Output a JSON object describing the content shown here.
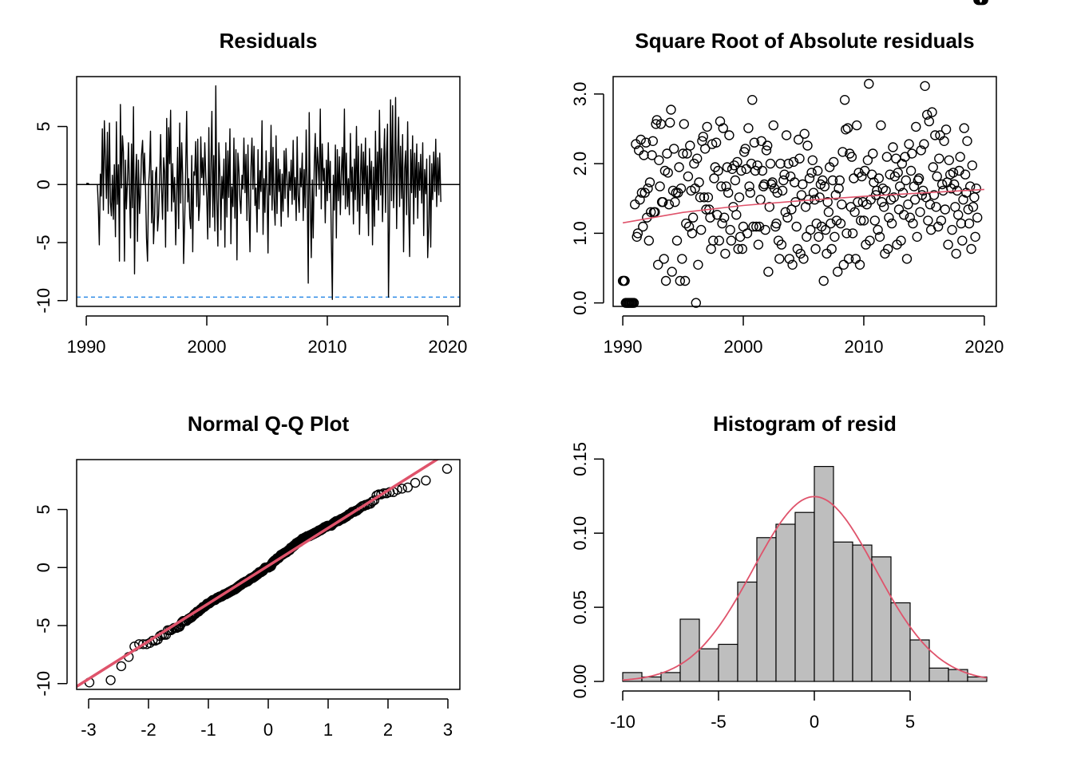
{
  "chart_data": [
    {
      "panel": "residuals-ts",
      "type": "line",
      "title": "Residuals",
      "xlabel": "",
      "ylabel": "",
      "xlim": [
        1989.2,
        2021.0
      ],
      "ylim": [
        -10.5,
        9.3
      ],
      "xticks": [
        1990,
        2000,
        2010,
        2020
      ],
      "xtick_labels": [
        "1990",
        "2000",
        "2010",
        "2020"
      ],
      "yticks": [
        -10,
        -5,
        0,
        5
      ],
      "ytick_labels": [
        "-10",
        "-5",
        "0",
        "5"
      ],
      "hline_zero": 0,
      "hline_dashed": -9.7,
      "colors": {
        "line": "#000000",
        "dashed": "#2E8BE6"
      },
      "series_x": [
        1990.0,
        1990.08,
        1990.17,
        1990.25,
        1990.33,
        1990.42,
        1990.5,
        1990.58,
        1990.67,
        1990.75,
        1990.83,
        1990.92,
        1991.0,
        1991.08,
        1991.17,
        1991.25,
        1991.33,
        1991.42,
        1991.5,
        1991.58,
        1991.67,
        1991.75,
        1991.83,
        1991.92,
        1992.0,
        1992.08,
        1992.17,
        1992.25,
        1992.33,
        1992.42,
        1992.5,
        1992.58,
        1992.67,
        1992.75,
        1992.83,
        1992.92,
        1993.0,
        1993.08,
        1993.17,
        1993.25,
        1993.33,
        1993.42,
        1993.5,
        1993.58,
        1993.67,
        1993.75,
        1993.83,
        1993.92,
        1994.0,
        1994.08,
        1994.17,
        1994.25,
        1994.33,
        1994.42,
        1994.5,
        1994.58,
        1994.67,
        1994.75,
        1994.83,
        1994.92,
        1995.0,
        1995.08,
        1995.17,
        1995.25,
        1995.33,
        1995.42,
        1995.5,
        1995.58,
        1995.67,
        1995.75,
        1995.83,
        1995.92,
        1996.0,
        1996.08,
        1996.17,
        1996.25,
        1996.33,
        1996.42,
        1996.5,
        1996.58,
        1996.67,
        1996.75,
        1996.83,
        1996.92,
        1997.0,
        1997.08,
        1997.17,
        1997.25,
        1997.33,
        1997.42,
        1997.5,
        1997.58,
        1997.67,
        1997.75,
        1997.83,
        1997.92,
        1998.0,
        1998.08,
        1998.17,
        1998.25,
        1998.33,
        1998.42,
        1998.5,
        1998.58,
        1998.67,
        1998.75,
        1998.83,
        1998.92,
        1999.0,
        1999.08,
        1999.17,
        1999.25,
        1999.33,
        1999.42,
        1999.5,
        1999.58,
        1999.67,
        1999.75,
        1999.83,
        1999.92,
        2000.0,
        2000.08,
        2000.17,
        2000.25,
        2000.33,
        2000.42,
        2000.5,
        2000.58,
        2000.67,
        2000.75,
        2000.83,
        2000.92,
        2001.0,
        2001.08,
        2001.17,
        2001.25,
        2001.33,
        2001.42,
        2001.5,
        2001.58,
        2001.67,
        2001.75,
        2001.83,
        2001.92,
        2002.0,
        2002.08,
        2002.17,
        2002.25,
        2002.33,
        2002.42,
        2002.5,
        2002.58,
        2002.67,
        2002.75,
        2002.83,
        2002.92,
        2003.0,
        2003.08,
        2003.17,
        2003.25,
        2003.33,
        2003.42,
        2003.5,
        2003.58,
        2003.67,
        2003.75,
        2003.83,
        2003.92,
        2004.0,
        2004.08,
        2004.17,
        2004.25,
        2004.33,
        2004.42,
        2004.5,
        2004.58,
        2004.67,
        2004.75,
        2004.83,
        2004.92,
        2005.0,
        2005.08,
        2005.17,
        2005.25,
        2005.33,
        2005.42,
        2005.5,
        2005.58,
        2005.67,
        2005.75,
        2005.83,
        2005.92,
        2006.0,
        2006.08,
        2006.17,
        2006.25,
        2006.33,
        2006.42,
        2006.5,
        2006.58,
        2006.67,
        2006.75,
        2006.83,
        2006.92,
        2007.0,
        2007.08,
        2007.17,
        2007.25,
        2007.33,
        2007.42,
        2007.5,
        2007.58,
        2007.67,
        2007.75,
        2007.83,
        2007.92,
        2008.0,
        2008.08,
        2008.17,
        2008.25,
        2008.33,
        2008.42,
        2008.5,
        2008.58,
        2008.67,
        2008.75,
        2008.83,
        2008.92,
        2009.0,
        2009.08,
        2009.17,
        2009.25,
        2009.33,
        2009.42,
        2009.5,
        2009.58,
        2009.67,
        2009.75,
        2009.83,
        2009.92,
        2010.0,
        2010.08,
        2010.17,
        2010.25,
        2010.33,
        2010.42,
        2010.5,
        2010.58,
        2010.67,
        2010.75,
        2010.83,
        2010.92,
        2011.0,
        2011.08,
        2011.17,
        2011.25,
        2011.33,
        2011.42,
        2011.5,
        2011.58,
        2011.67,
        2011.75,
        2011.83,
        2011.92,
        2012.0,
        2012.08,
        2012.17,
        2012.25,
        2012.33,
        2012.42,
        2012.5,
        2012.58,
        2012.67,
        2012.75,
        2012.83,
        2012.92,
        2013.0,
        2013.08,
        2013.17,
        2013.25,
        2013.33,
        2013.42,
        2013.5,
        2013.58,
        2013.67,
        2013.75,
        2013.83,
        2013.92,
        2014.0,
        2014.08,
        2014.17,
        2014.25,
        2014.33,
        2014.42,
        2014.5,
        2014.58,
        2014.67,
        2014.75,
        2014.83,
        2014.92,
        2015.0,
        2015.08,
        2015.17,
        2015.25,
        2015.33,
        2015.42,
        2015.5,
        2015.58,
        2015.67,
        2015.75,
        2015.83,
        2015.92,
        2016.0,
        2016.08,
        2016.17,
        2016.25,
        2016.33,
        2016.42,
        2016.5,
        2016.58,
        2016.67,
        2016.75,
        2016.83,
        2016.92,
        2017.0,
        2017.08,
        2017.17,
        2017.25,
        2017.33,
        2017.42,
        2017.5,
        2017.58,
        2017.67,
        2017.75,
        2017.83,
        2017.92,
        2018.0,
        2018.08,
        2018.17,
        2018.25,
        2018.33,
        2018.42,
        2018.5,
        2018.58,
        2018.67,
        2018.75,
        2018.83,
        2018.92,
        2019.0,
        2019.08,
        2019.17,
        2019.25,
        2019.33,
        2019.42,
        2019.5,
        2019.58,
        2019.67,
        2019.75,
        2019.83,
        2019.92
      ],
      "series_y": [
        0.1,
        0.1,
        0.1,
        0.0,
        0.0,
        0.0,
        0.0,
        0.0,
        0.0,
        0.0,
        0.0,
        0.0,
        -2.0,
        -5.2,
        0.9,
        -1.0,
        4.8,
        -2.2,
        5.5,
        2.5,
        -1.2,
        4.5,
        -2.5,
        5.3,
        -1.5,
        -2.7,
        0.8,
        -3.0,
        1.7,
        -4.5,
        5.4,
        -1.7,
        1.7,
        -6.6,
        6.9,
        -0.3,
        4.2,
        2.8,
        -6.6,
        2.1,
        -2.1,
        0.4,
        3.6,
        -0.1,
        -4.6,
        3.5,
        -2.0,
        6.7,
        -7.7,
        0.2,
        2.6,
        -4.9,
        2.1,
        -2.5,
        -0.8,
        2.5,
        3.8,
        0.1,
        2.7,
        -0.4,
        -4.6,
        -6.6,
        -0.1,
        1.3,
        4.6,
        -3.3,
        1.2,
        -5.1,
        -2.6,
        1.0,
        1.5,
        -4.0,
        -2.7,
        0.0,
        4.3,
        -0.3,
        -3.0,
        2.3,
        1.1,
        -5.4,
        5.7,
        -2.3,
        4.9,
        1.8,
        6.4,
        -2.3,
        1.8,
        -1.5,
        0.6,
        -5.2,
        -0.8,
        3.2,
        -3.8,
        5.3,
        -1.6,
        3.6,
        0.8,
        -6.8,
        -2.8,
        1.3,
        6.3,
        -1.5,
        0.5,
        -2.8,
        -3.8,
        2.5,
        -5.8,
        1.1,
        0.8,
        3.7,
        -1.9,
        3.9,
        -3.1,
        -1.6,
        4.1,
        0.6,
        2.3,
        -0.9,
        3.6,
        0.6,
        -1.2,
        -4.7,
        4.9,
        -3.7,
        1.0,
        6.3,
        -2.8,
        2.5,
        -4.0,
        8.5,
        -1.2,
        -5.3,
        3.6,
        1.2,
        -3.9,
        0.7,
        -1.2,
        2.2,
        -5.4,
        3.6,
        -2.8,
        2.9,
        -1.1,
        4.8,
        -5.1,
        -0.2,
        -1.9,
        4.0,
        -2.9,
        3.0,
        -6.5,
        2.7,
        1.2,
        -1.3,
        -2.5,
        0.8,
        -0.4,
        4.0,
        -0.7,
        2.6,
        -3.1,
        3.4,
        -1.7,
        -5.8,
        1.5,
        4.0,
        -0.4,
        3.3,
        -1.8,
        -0.3,
        -4.1,
        3.0,
        -2.1,
        1.2,
        -0.6,
        5.5,
        -4.3,
        0.5,
        -2.4,
        2.9,
        -0.4,
        -5.9,
        1.9,
        -0.9,
        5.1,
        -2.2,
        3.2,
        -1.1,
        -3.5,
        4.2,
        -2.5,
        2.2,
        -0.6,
        1.3,
        -3.6,
        0.9,
        -2.3,
        2.9,
        -1.2,
        3.1,
        0.1,
        -2.8,
        1.1,
        -0.5,
        2.1,
        -1.7,
        3.8,
        -1.3,
        0.6,
        -3.1,
        4.1,
        -0.9,
        -2.4,
        1.4,
        -0.2,
        2.7,
        -3.1,
        1.3,
        -2.0,
        4.7,
        -0.3,
        -8.5,
        6.2,
        -1.0,
        -6.3,
        0.4,
        -4.6,
        1.9,
        4.4,
        -1.0,
        3.2,
        1.7,
        -0.4,
        6.5,
        -2.1,
        3.5,
        0.3,
        1.4,
        -3.3,
        2.1,
        -1.4,
        3.6,
        -0.7,
        2.0,
        -4.2,
        -9.9,
        0.8,
        -2.2,
        3.4,
        -4.6,
        3.0,
        -1.4,
        2.4,
        -2.6,
        1.1,
        3.2,
        -0.9,
        6.5,
        -2.1,
        2.7,
        -1.9,
        0.5,
        -2.6,
        4.4,
        -0.6,
        1.5,
        -3.4,
        2.2,
        -1.3,
        5.0,
        -2.3,
        3.3,
        -4.3,
        0.7,
        3.5,
        -1.8,
        2.8,
        -0.8,
        4.0,
        -2.5,
        1.6,
        -4.4,
        3.1,
        -0.4,
        2.0,
        -5.2,
        1.5,
        -3.6,
        4.6,
        -1.3,
        2.8,
        -2.2,
        6.4,
        -0.9,
        3.1,
        -3.2,
        1.7,
        4.8,
        -2.4,
        2.6,
        5.2,
        -9.7,
        -2.3,
        7.3,
        -1.4,
        6.8,
        -2.0,
        1.1,
        7.5,
        -3.8,
        2.4,
        5.8,
        -1.9,
        3.3,
        -1.2,
        4.3,
        -5.8,
        1.4,
        2.9,
        -2.6,
        5.4,
        -1.8,
        -6.2,
        3.0,
        -0.7,
        4.2,
        -3.4,
        2.7,
        -1.1,
        3.5,
        -2.9,
        1.9,
        -0.5,
        2.6,
        -1.6,
        3.6,
        -4.4,
        1.3,
        -0.8,
        2.2,
        -6.3,
        -3.4,
        2.5,
        -5.4,
        1.8,
        -1.3,
        2.8,
        -0.6,
        3.9,
        -1.9,
        2.3,
        -0.9,
        2.7,
        -1.5
      ]
    },
    {
      "panel": "sqrt-abs-residuals",
      "type": "scatter",
      "title": "Square Root of Absolute residuals",
      "xlabel": "",
      "ylabel": "",
      "xlim": [
        1989.2,
        2021.0
      ],
      "ylim": [
        -0.05,
        3.25
      ],
      "xticks": [
        1990,
        2000,
        2010,
        2020
      ],
      "xtick_labels": [
        "1990",
        "2000",
        "2010",
        "2020"
      ],
      "yticks": [
        0.0,
        1.0,
        2.0,
        3.0
      ],
      "ytick_labels": [
        "0.0",
        "1.0",
        "2.0",
        "3.0"
      ],
      "trend_line": {
        "x": [
          1990,
          1995,
          2000,
          2005,
          2010,
          2015,
          2020
        ],
        "y": [
          1.15,
          1.3,
          1.4,
          1.47,
          1.53,
          1.58,
          1.63
        ]
      },
      "colors": {
        "points": "#000000",
        "trend": "#DF536B"
      }
    },
    {
      "panel": "normal-qq",
      "type": "scatter",
      "title": "Normal Q-Q Plot",
      "xlabel": "",
      "ylabel": "",
      "xlim": [
        -3.2,
        3.2
      ],
      "ylim": [
        -10.5,
        9.3
      ],
      "xticks": [
        -3,
        -2,
        -1,
        0,
        1,
        2,
        3
      ],
      "xtick_labels": [
        "-3",
        "-2",
        "-1",
        "0",
        "1",
        "2",
        "3"
      ],
      "yticks": [
        -10,
        -5,
        0,
        5
      ],
      "ytick_labels": [
        "-10",
        "-5",
        "0",
        "5"
      ],
      "ref_line": {
        "intercept": 0.15,
        "slope": 3.25
      },
      "colors": {
        "points": "#000000",
        "line": "#DF536B"
      }
    },
    {
      "panel": "histogram",
      "type": "bar",
      "title": "Histogram of resid",
      "xlabel": "",
      "ylabel": "",
      "xlim": [
        -10.5,
        9.5
      ],
      "ylim": [
        0,
        0.155
      ],
      "xticks": [
        -10,
        -5,
        0,
        5
      ],
      "xtick_labels": [
        "-10",
        "-5",
        "0",
        "5"
      ],
      "yticks": [
        0.0,
        0.05,
        0.1,
        0.15
      ],
      "ytick_labels": [
        "0.00",
        "0.05",
        "0.10",
        "0.15"
      ],
      "bin_edges": [
        -10,
        -9,
        -8,
        -7,
        -6,
        -5,
        -4,
        -3,
        -2,
        -1,
        0,
        1,
        2,
        3,
        4,
        5,
        6,
        7,
        8,
        9
      ],
      "densities": [
        0.006,
        0.003,
        0.006,
        0.042,
        0.022,
        0.025,
        0.067,
        0.097,
        0.106,
        0.114,
        0.145,
        0.094,
        0.092,
        0.084,
        0.053,
        0.028,
        0.009,
        0.008,
        0.003
      ],
      "normal_curve": {
        "mean": 0,
        "sd": 3.2
      },
      "colors": {
        "bars": "#BEBEBE",
        "curve": "#DF536B"
      }
    }
  ]
}
